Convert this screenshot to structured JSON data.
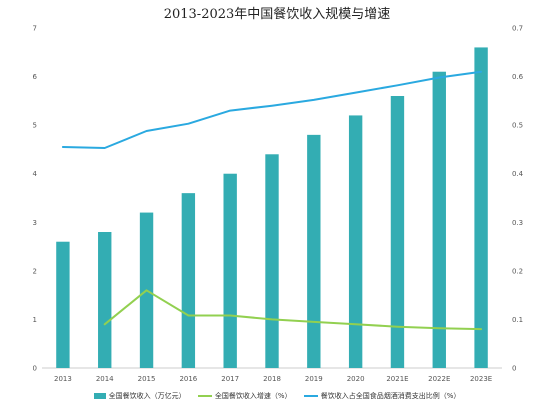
{
  "chart_data": {
    "type": "bar",
    "title": "2013-2023年中国餐饮收入规模与增速",
    "categories": [
      "2013",
      "2014",
      "2015",
      "2016",
      "2017",
      "2018",
      "2019",
      "2020",
      "2021E",
      "2022E",
      "2023E"
    ],
    "series": [
      {
        "name": "全国餐饮收入（万亿元）",
        "type": "bar",
        "axis": "left",
        "color": "#33adb3",
        "values": [
          2.6,
          2.8,
          3.2,
          3.6,
          4.0,
          4.4,
          4.8,
          5.2,
          5.6,
          6.1,
          6.6
        ]
      },
      {
        "name": "全国餐饮收入增速（%）",
        "type": "line",
        "axis": "right",
        "color": "#92d050",
        "values": [
          null,
          0.09,
          0.16,
          0.108,
          0.108,
          0.1,
          0.095,
          0.09,
          0.085,
          0.082,
          0.08
        ]
      },
      {
        "name": "餐饮收入占全国食品烟酒消费支出比例（%）",
        "type": "line",
        "axis": "right",
        "color": "#2aa9e0",
        "values": [
          0.455,
          0.453,
          0.488,
          0.503,
          0.53,
          0.54,
          0.552,
          0.567,
          0.582,
          0.598,
          0.61
        ]
      }
    ],
    "y_left": {
      "ylim": [
        0,
        7
      ],
      "ticks": [
        "0",
        "1",
        "2",
        "3",
        "4",
        "5",
        "6",
        "7"
      ]
    },
    "y_right": {
      "ylim": [
        0,
        0.7
      ],
      "ticks": [
        "0",
        "0.1",
        "0.2",
        "0.3",
        "0.4",
        "0.5",
        "0.6",
        "0.7"
      ]
    },
    "grid": false,
    "legend_position": "bottom"
  }
}
